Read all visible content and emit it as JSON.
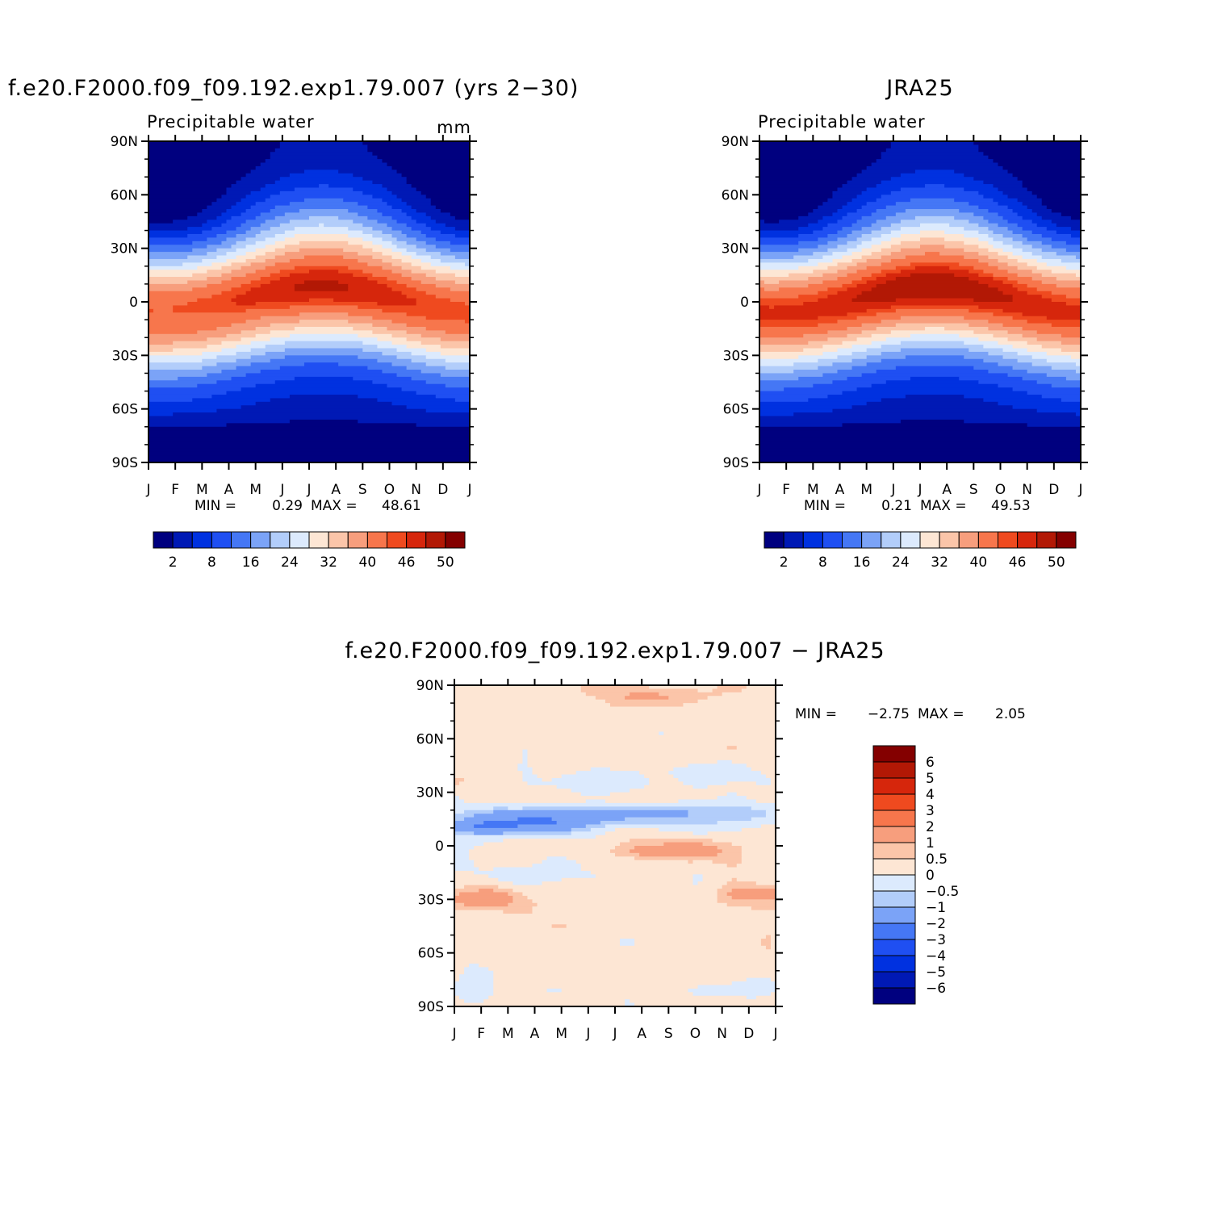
{
  "panels": [
    {
      "title": "f.e20.F2000.f09_f09.192.exp1.79.007 (yrs 2−30)",
      "left_label": "Precipitable water",
      "units": "mm",
      "stats": {
        "min_label": "MIN =",
        "min": "0.29",
        "max_label": "MAX =",
        "max": "48.61"
      }
    },
    {
      "title": "JRA25",
      "left_label": "Precipitable water",
      "units": "",
      "stats": {
        "min_label": "MIN =",
        "min": "0.21",
        "max_label": "MAX =",
        "max": "49.53"
      }
    },
    {
      "title": "f.e20.F2000.f09_f09.192.exp1.79.007 − JRA25",
      "left_label": "",
      "units": "",
      "stats": {
        "min_label": "MIN =",
        "min": "−2.75",
        "max_label": "MAX =",
        "max": "2.05"
      }
    }
  ],
  "axes": {
    "y_ticks": [
      "90N",
      "60N",
      "30N",
      "0",
      "30S",
      "60S",
      "90S"
    ],
    "x_ticks": [
      "J",
      "F",
      "M",
      "A",
      "M",
      "J",
      "J",
      "A",
      "S",
      "O",
      "N",
      "D",
      "J"
    ]
  },
  "colorbars": {
    "abs": {
      "colors": [
        "#00007f",
        "#0019b5",
        "#0031e0",
        "#1f4ff2",
        "#4577f5",
        "#7ba3f7",
        "#b2cdfa",
        "#dceafd",
        "#fde6d4",
        "#fbc5a9",
        "#f79e7d",
        "#f7764c",
        "#ef4a1f",
        "#d6260c",
        "#b21805",
        "#840000"
      ],
      "labels": [
        "2",
        "8",
        "16",
        "24",
        "32",
        "40",
        "46",
        "50"
      ]
    },
    "diff": {
      "colors": [
        "#840000",
        "#b21805",
        "#d6260c",
        "#ef4a1f",
        "#f7764c",
        "#f79e7d",
        "#fbc5a9",
        "#fde6d4",
        "#dceafd",
        "#b2cdfa",
        "#7ba3f7",
        "#4577f5",
        "#1f4ff2",
        "#0031e0",
        "#0019b5",
        "#00007f"
      ],
      "labels": [
        "6",
        "5",
        "4",
        "3",
        "2",
        "1",
        "0.5",
        "0",
        "−0.5",
        "−1",
        "−2",
        "−3",
        "−4",
        "−5",
        "−6"
      ]
    }
  },
  "chart_data": [
    {
      "type": "heatmap",
      "title": "f.e20.F2000.f09_f09.192.exp1.79.007 (yrs 2−30)",
      "ylabel": "Precipitable water",
      "units": "mm",
      "x": [
        "J",
        "F",
        "M",
        "A",
        "M",
        "J",
        "J",
        "A",
        "S",
        "O",
        "N",
        "D",
        "J"
      ],
      "y_range": [
        -90,
        90
      ],
      "min": 0.29,
      "max": 48.61,
      "levels": [
        2,
        5,
        8,
        12,
        16,
        20,
        24,
        28,
        32,
        36,
        40,
        44,
        46,
        48,
        50
      ],
      "zonal_profile_annual_mean": {
        "lat": [
          90,
          60,
          30,
          10,
          0,
          -10,
          -30,
          -60,
          -90
        ],
        "value": [
          2,
          8,
          21,
          40,
          44,
          40,
          22,
          9,
          1
        ]
      },
      "itcz_max_lat_by_month": [
        -5,
        -4,
        -2,
        0,
        3,
        5,
        7,
        8,
        8,
        7,
        5,
        2,
        -5
      ]
    },
    {
      "type": "heatmap",
      "title": "JRA25",
      "ylabel": "Precipitable water",
      "units": "",
      "x": [
        "J",
        "F",
        "M",
        "A",
        "M",
        "J",
        "J",
        "A",
        "S",
        "O",
        "N",
        "D",
        "J"
      ],
      "y_range": [
        -90,
        90
      ],
      "min": 0.21,
      "max": 49.53,
      "levels": [
        2,
        5,
        8,
        12,
        16,
        20,
        24,
        28,
        32,
        36,
        40,
        44,
        46,
        48,
        50
      ],
      "zonal_profile_annual_mean": {
        "lat": [
          90,
          60,
          30,
          10,
          0,
          -10,
          -30,
          -60,
          -90
        ],
        "value": [
          1.5,
          8,
          22,
          41,
          45,
          41,
          22,
          9,
          0.5
        ]
      },
      "itcz_max_lat_by_month": [
        -5,
        -4,
        -2,
        0,
        3,
        5,
        7,
        8,
        8,
        7,
        5,
        2,
        -5
      ]
    },
    {
      "type": "heatmap",
      "title": "f.e20.F2000.f09_f09.192.exp1.79.007 − JRA25",
      "x": [
        "J",
        "F",
        "M",
        "A",
        "M",
        "J",
        "J",
        "A",
        "S",
        "O",
        "N",
        "D",
        "J"
      ],
      "y_range": [
        -90,
        90
      ],
      "min": -2.75,
      "max": 2.05,
      "levels": [
        -6,
        -5,
        -4,
        -3,
        -2,
        -1,
        -0.5,
        0,
        0.5,
        1,
        2,
        3,
        4,
        5,
        6
      ],
      "notable_features": [
        {
          "region": "20N-10N, Feb-May",
          "sign": "negative",
          "approx": -2.5
        },
        {
          "region": "0-10S, Aug-Oct",
          "sign": "positive",
          "approx": 1.5
        },
        {
          "region": "25S-35S, Jan-Mar",
          "sign": "positive",
          "approx": 1.5
        },
        {
          "region": "80N-90N, Jul-Oct",
          "sign": "positive",
          "approx": 0.8
        }
      ]
    }
  ]
}
